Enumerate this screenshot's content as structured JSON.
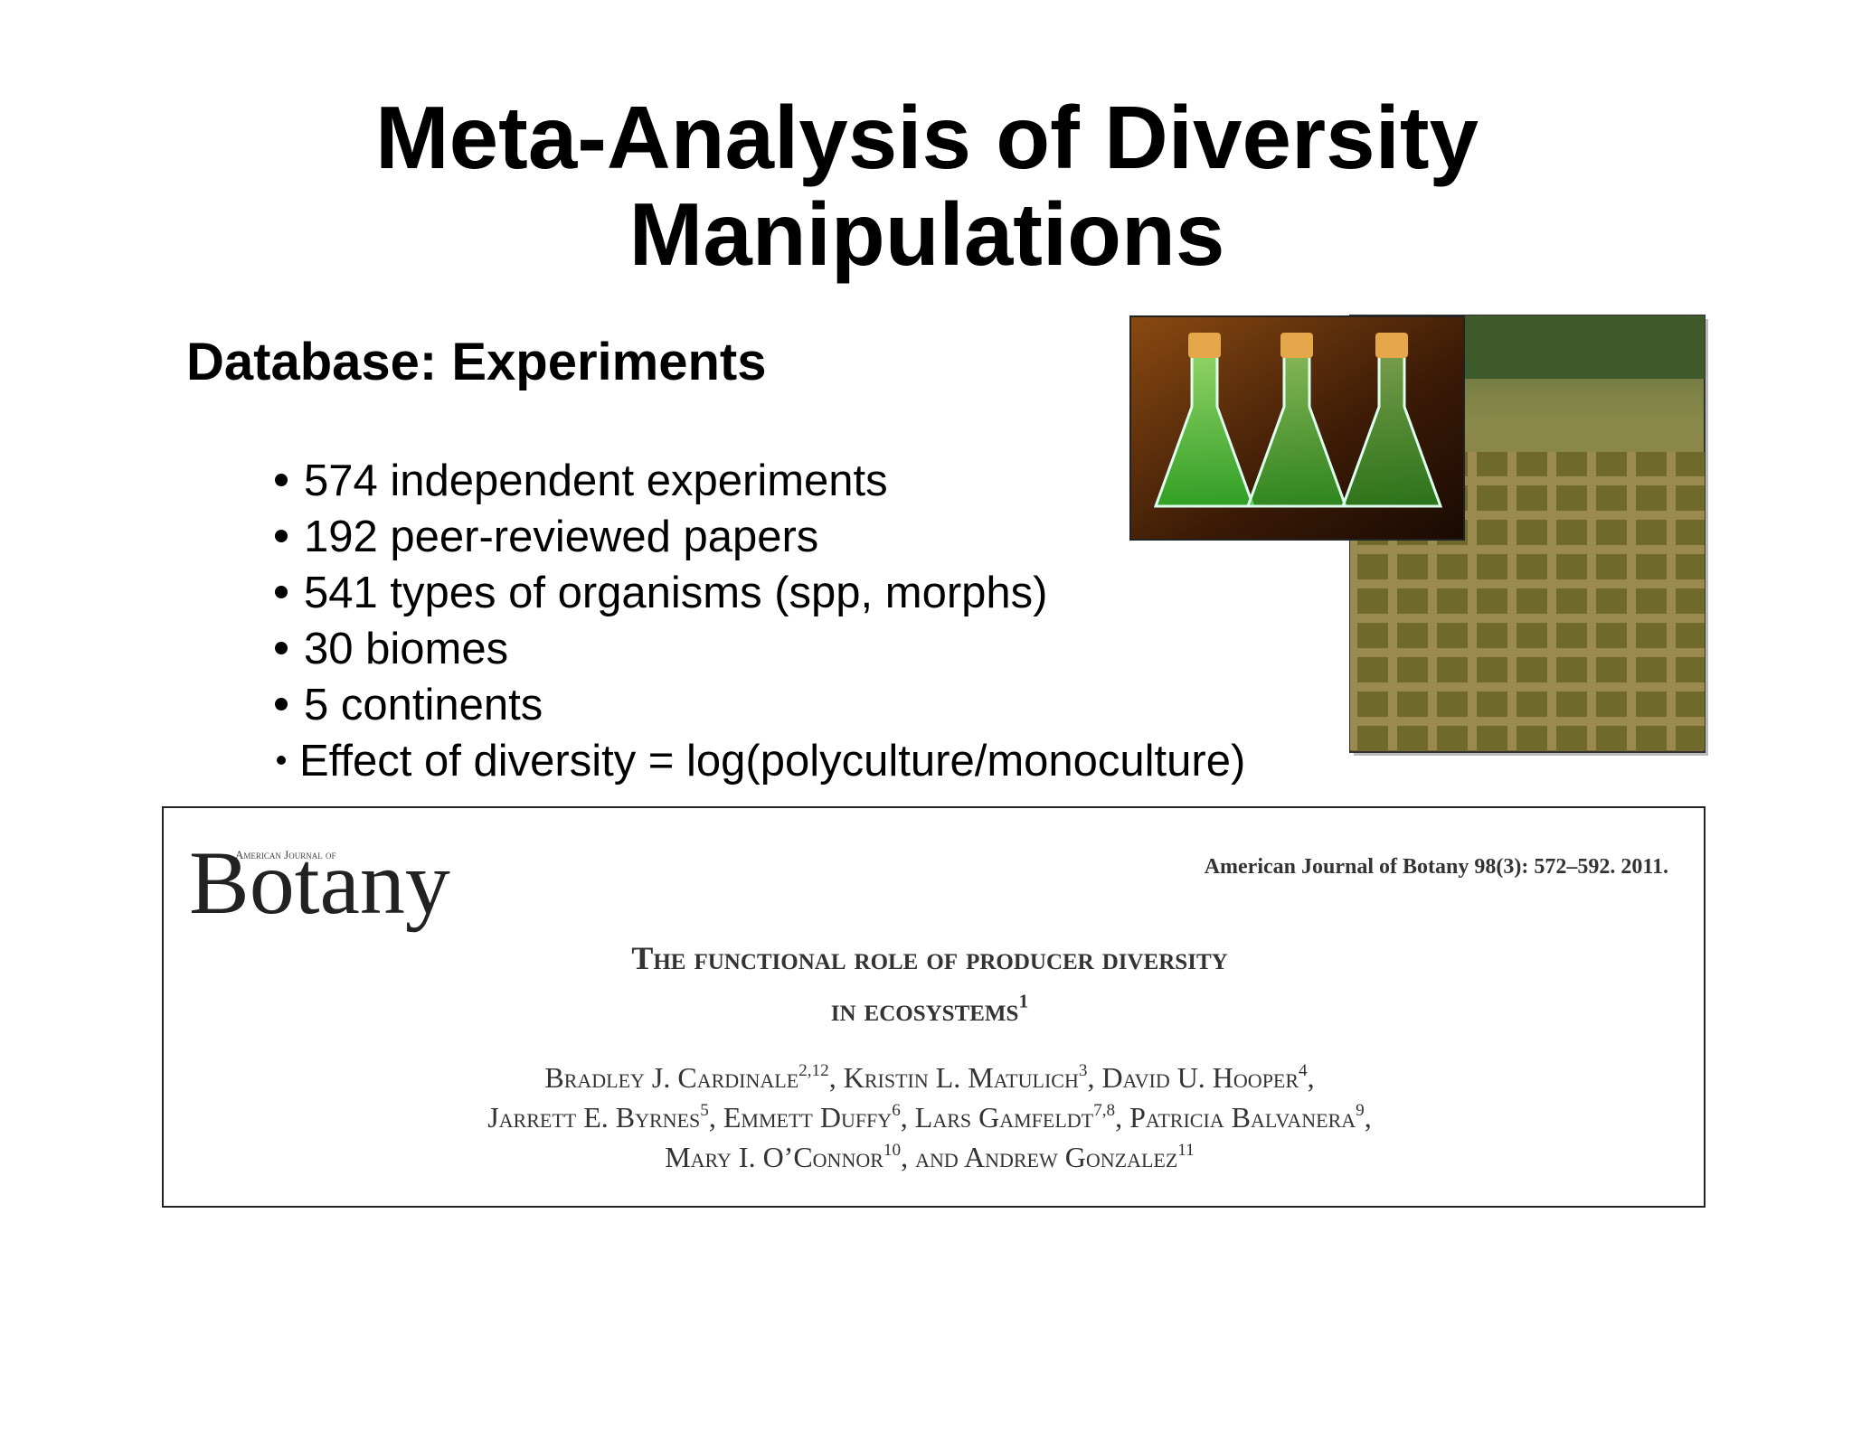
{
  "slide": {
    "title": [
      "Meta-Analysis of Diversity",
      "Manipulations"
    ],
    "heading": "Database: Experiments",
    "bullets": [
      "574 independent experiments",
      "192 peer-reviewed papers",
      "541 types of organisms (spp, morphs)",
      "30 biomes",
      "5 continents",
      "Effect of diversity = log(polyculture/monoculture)"
    ],
    "paper": {
      "journal_small": "American Journal of",
      "journal": "Botany",
      "citation": "American Journal of Botany 98(3): 572–592. 2011.",
      "title": [
        [
          {
            "text": "The functional role of producer diversity"
          }
        ],
        [
          {
            "text": "in ecosystems",
            "sup": "1"
          }
        ]
      ],
      "authors": [
        [
          {
            "text": "Bradley J. Cardinale",
            "sup": "2,12"
          },
          {
            "text": ", Kristin L. Matulich",
            "sup": "3"
          },
          {
            "text": ", David U. Hooper",
            "sup": "4"
          },
          {
            "text": ","
          }
        ],
        [
          {
            "text": "Jarrett E. Byrnes",
            "sup": "5"
          },
          {
            "text": ", Emmett Duffy",
            "sup": "6"
          },
          {
            "text": ", Lars Gamfeldt",
            "sup": "7,8"
          },
          {
            "text": ", Patricia Balvanera",
            "sup": "9"
          },
          {
            "text": ","
          }
        ],
        [
          {
            "text": "Mary I. O’Connor",
            "sup": "10"
          },
          {
            "text": ", and Andrew Gonzalez",
            "sup": "11"
          }
        ]
      ]
    }
  }
}
